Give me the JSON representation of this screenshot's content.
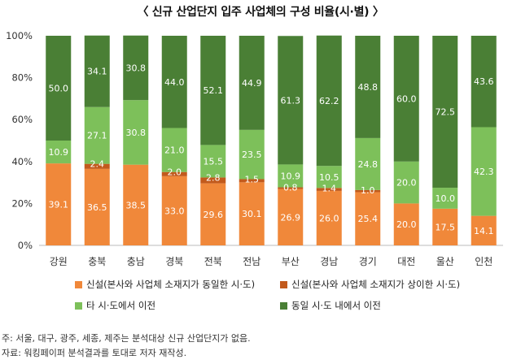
{
  "title": "〈 신규 산업단지 입주 사업체의 구성 비율(시·별) 〉",
  "chart_data": {
    "type": "bar",
    "stacked": true,
    "categories": [
      "강원",
      "충북",
      "충남",
      "경북",
      "전북",
      "전남",
      "부산",
      "경남",
      "경기",
      "대전",
      "울산",
      "인천"
    ],
    "series": [
      {
        "name": "신설(본사와 사업체 소재지가 동일한 시·도)",
        "color": "#F0883A",
        "values": [
          39.1,
          36.5,
          38.5,
          33.0,
          29.6,
          30.1,
          26.9,
          26.0,
          25.4,
          20.0,
          17.5,
          14.1
        ]
      },
      {
        "name": "신설(본사와 사업체 소재지가 상이한 시·도)",
        "color": "#C25A1C",
        "values": [
          0,
          2.4,
          0,
          2.0,
          2.8,
          1.5,
          0.8,
          1.4,
          1.0,
          0,
          0,
          0
        ]
      },
      {
        "name": "타 시·도에서 이전",
        "color": "#7DC05A",
        "values": [
          10.9,
          27.1,
          30.8,
          21.0,
          15.5,
          23.5,
          10.9,
          10.5,
          24.8,
          20.0,
          10.0,
          42.3
        ]
      },
      {
        "name": "동일 시·도 내에서 이전",
        "color": "#4A7F35",
        "values": [
          50.0,
          34.1,
          30.8,
          44.0,
          52.1,
          44.9,
          61.3,
          62.2,
          48.8,
          60.0,
          72.5,
          43.6
        ]
      }
    ],
    "ylim": [
      0,
      100
    ],
    "yticks": [
      "0%",
      "20%",
      "40%",
      "60%",
      "80%",
      "100%"
    ],
    "grid": false,
    "legend_position": "bottom"
  },
  "notes": [
    "주: 서울, 대구, 광주, 세종, 제주는 분석대상 신규 산업단지가 없음.",
    "자료: 워킹페이퍼 분석결과를 토대로 저자 재작성."
  ]
}
